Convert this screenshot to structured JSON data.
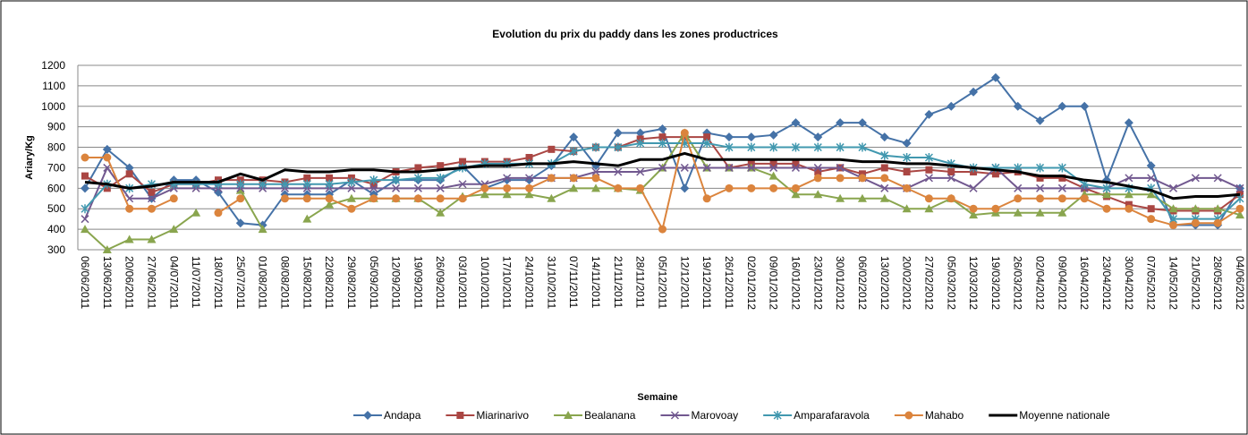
{
  "chart_data": {
    "type": "line",
    "title": "Evolution du prix du paddy dans les zones productrices",
    "x_label": "Semaine",
    "y_label": "Ariary/Kg",
    "categories": [
      "06/06/2011",
      "13/06/2011",
      "20/06/2011",
      "27/06/2011",
      "04/07/2011",
      "11/07/2011",
      "18/07/2011",
      "25/07/2011",
      "01/08/2011",
      "08/08/2011",
      "15/08/2011",
      "22/08/2011",
      "29/08/2011",
      "05/09/2011",
      "12/09/2011",
      "19/09/2011",
      "26/09/2011",
      "03/10/2011",
      "10/10/2011",
      "17/10/2011",
      "24/10/2011",
      "31/10/2011",
      "07/11/2011",
      "14/11/2011",
      "21/11/2011",
      "28/11/2011",
      "05/12/2011",
      "12/12/2011",
      "19/12/2011",
      "26/12/2011",
      "02/01/2012",
      "09/01/2012",
      "16/01/2012",
      "23/01/2012",
      "30/01/2012",
      "06/02/2012",
      "13/02/2012",
      "20/02/2012",
      "27/02/2012",
      "05/03/2012",
      "12/03/2012",
      "19/03/2012",
      "26/03/2012",
      "02/04/2012",
      "09/04/2012",
      "16/04/2012",
      "23/04/2012",
      "30/04/2012",
      "07/05/2012",
      "14/05/2012",
      "21/05/2012",
      "28/05/2012",
      "04/06/2012"
    ],
    "ylim": [
      300,
      1200
    ],
    "yticks": [
      300,
      400,
      500,
      600,
      700,
      800,
      900,
      1000,
      1100,
      1200
    ],
    "grid": true,
    "series": [
      {
        "name": "Andapa",
        "color": "#4572a7",
        "marker": "diamond",
        "values": [
          600,
          790,
          700,
          550,
          640,
          640,
          580,
          430,
          420,
          570,
          570,
          570,
          640,
          570,
          640,
          640,
          640,
          710,
          600,
          640,
          640,
          710,
          850,
          710,
          870,
          870,
          890,
          600,
          870,
          850,
          850,
          860,
          920,
          850,
          920,
          920,
          850,
          820,
          960,
          1000,
          1070,
          1140,
          1000,
          930,
          1000,
          1000,
          640,
          920,
          710,
          420,
          420,
          420,
          600
        ]
      },
      {
        "name": "Miarinarivo",
        "color": "#aa4643",
        "marker": "square",
        "values": [
          660,
          600,
          670,
          580,
          620,
          620,
          640,
          640,
          640,
          630,
          650,
          650,
          650,
          620,
          680,
          700,
          710,
          730,
          730,
          730,
          750,
          790,
          780,
          800,
          800,
          840,
          850,
          850,
          850,
          700,
          720,
          720,
          720,
          680,
          700,
          670,
          700,
          680,
          690,
          680,
          680,
          670,
          680,
          650,
          650,
          600,
          560,
          520,
          500,
          490,
          490,
          490,
          570
        ]
      },
      {
        "name": "Bealanana",
        "color": "#89a54e",
        "marker": "triangle",
        "values": [
          400,
          300,
          350,
          350,
          400,
          480,
          null,
          590,
          400,
          null,
          450,
          520,
          550,
          550,
          550,
          550,
          480,
          560,
          570,
          570,
          570,
          550,
          600,
          600,
          600,
          590,
          700,
          870,
          700,
          700,
          700,
          660,
          570,
          570,
          550,
          550,
          550,
          500,
          500,
          550,
          470,
          480,
          480,
          480,
          480,
          570,
          570,
          570,
          570,
          500,
          500,
          500,
          470
        ]
      },
      {
        "name": "Marovoay",
        "color": "#71588f",
        "marker": "x",
        "values": [
          450,
          700,
          550,
          550,
          600,
          600,
          600,
          600,
          600,
          600,
          600,
          600,
          600,
          600,
          600,
          600,
          600,
          620,
          620,
          650,
          650,
          650,
          650,
          680,
          680,
          680,
          700,
          700,
          700,
          700,
          700,
          700,
          700,
          700,
          700,
          650,
          600,
          600,
          650,
          650,
          600,
          700,
          600,
          600,
          600,
          600,
          600,
          650,
          650,
          600,
          650,
          650,
          600
        ]
      },
      {
        "name": "Amparafaravola",
        "color": "#4198af",
        "marker": "asterisk",
        "values": [
          500,
          620,
          600,
          620,
          620,
          620,
          620,
          620,
          620,
          620,
          620,
          620,
          630,
          640,
          640,
          650,
          650,
          700,
          720,
          720,
          720,
          720,
          780,
          800,
          800,
          820,
          820,
          820,
          820,
          800,
          800,
          800,
          800,
          800,
          800,
          800,
          760,
          750,
          750,
          720,
          700,
          700,
          700,
          700,
          700,
          620,
          600,
          600,
          600,
          450,
          450,
          450,
          550
        ]
      },
      {
        "name": "Mahabo",
        "color": "#db843d",
        "marker": "circle",
        "values": [
          750,
          750,
          500,
          500,
          550,
          null,
          480,
          550,
          null,
          550,
          550,
          550,
          500,
          550,
          550,
          550,
          550,
          550,
          600,
          600,
          600,
          650,
          650,
          650,
          600,
          600,
          400,
          870,
          550,
          600,
          600,
          600,
          600,
          650,
          650,
          650,
          650,
          600,
          550,
          550,
          500,
          500,
          550,
          550,
          550,
          550,
          500,
          500,
          450,
          420,
          430,
          430,
          500
        ]
      },
      {
        "name": "Moyenne nationale",
        "color": "#000000",
        "marker": "none",
        "values": [
          630,
          620,
          600,
          610,
          630,
          630,
          630,
          670,
          640,
          690,
          680,
          680,
          690,
          690,
          680,
          680,
          690,
          700,
          710,
          710,
          720,
          720,
          730,
          720,
          710,
          740,
          740,
          770,
          740,
          740,
          740,
          740,
          740,
          740,
          740,
          730,
          730,
          720,
          720,
          710,
          700,
          690,
          680,
          660,
          660,
          640,
          630,
          610,
          590,
          550,
          560,
          560,
          570
        ]
      }
    ]
  }
}
